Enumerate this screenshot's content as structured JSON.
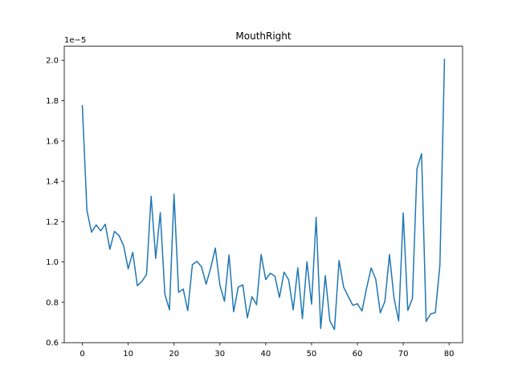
{
  "chart_data": {
    "type": "line",
    "title": "MouthRight",
    "xlabel": "",
    "ylabel": "",
    "y_offset_label": "1e−5",
    "xlim": [
      -3.95,
      82.95
    ],
    "ylim": [
      0.6,
      2.07
    ],
    "x_ticks": [
      0,
      10,
      20,
      30,
      40,
      50,
      60,
      70,
      80
    ],
    "x_tick_labels": [
      "0",
      "10",
      "20",
      "30",
      "40",
      "50",
      "60",
      "70",
      "80"
    ],
    "y_ticks": [
      0.6,
      0.8,
      1.0,
      1.2,
      1.4,
      1.6,
      1.8,
      2.0
    ],
    "y_tick_labels": [
      "0.6",
      "0.8",
      "1.0",
      "1.2",
      "1.4",
      "1.6",
      "1.8",
      "2.0"
    ],
    "grid": false,
    "series": [
      {
        "color": "#1f77b4",
        "x": [
          0,
          1,
          2,
          3,
          4,
          5,
          6,
          7,
          8,
          9,
          10,
          11,
          12,
          13,
          14,
          15,
          16,
          17,
          18,
          19,
          20,
          21,
          22,
          23,
          24,
          25,
          26,
          27,
          28,
          29,
          30,
          31,
          32,
          33,
          34,
          35,
          36,
          37,
          38,
          39,
          40,
          41,
          42,
          43,
          44,
          45,
          46,
          47,
          48,
          49,
          50,
          51,
          52,
          53,
          54,
          55,
          56,
          57,
          58,
          59,
          60,
          61,
          62,
          63,
          64,
          65,
          66,
          67,
          68,
          69,
          70,
          71,
          72,
          73,
          74,
          75,
          76,
          77,
          78,
          79
        ],
        "values": [
          1.775,
          1.255,
          1.148,
          1.184,
          1.155,
          1.187,
          1.063,
          1.152,
          1.131,
          1.081,
          0.966,
          1.048,
          0.882,
          0.904,
          0.938,
          1.326,
          1.018,
          1.245,
          0.84,
          0.763,
          1.336,
          0.85,
          0.866,
          0.759,
          0.987,
          1.003,
          0.976,
          0.89,
          0.97,
          1.069,
          0.886,
          0.805,
          1.035,
          0.753,
          0.875,
          0.887,
          0.723,
          0.828,
          0.788,
          1.037,
          0.913,
          0.944,
          0.93,
          0.824,
          0.95,
          0.912,
          0.763,
          0.971,
          0.719,
          1.001,
          0.791,
          1.221,
          0.67,
          0.933,
          0.708,
          0.665,
          1.007,
          0.875,
          0.829,
          0.785,
          0.793,
          0.757,
          0.87,
          0.97,
          0.915,
          0.748,
          0.805,
          1.037,
          0.819,
          0.708,
          1.243,
          0.76,
          0.818,
          1.463,
          1.537,
          0.705,
          0.743,
          0.749,
          0.985,
          2.005
        ]
      }
    ]
  }
}
